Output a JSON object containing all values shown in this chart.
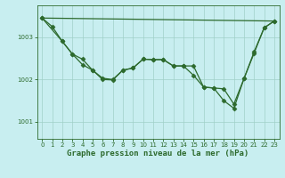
{
  "xlabel": "Graphe pression niveau de la mer (hPa)",
  "background_color": "#c8eef0",
  "grid_color": "#a0d0c8",
  "line_color": "#2d6a2d",
  "xlim": [
    -0.5,
    23.5
  ],
  "ylim": [
    1000.6,
    1003.75
  ],
  "yticks": [
    1001,
    1002,
    1003
  ],
  "xticks": [
    0,
    1,
    2,
    3,
    4,
    5,
    6,
    7,
    8,
    9,
    10,
    11,
    12,
    13,
    14,
    15,
    16,
    17,
    18,
    19,
    20,
    21,
    22,
    23
  ],
  "line1_x": [
    0,
    1,
    2,
    3,
    4,
    5,
    6,
    7,
    8,
    9,
    10,
    11,
    12,
    13,
    14,
    15,
    16,
    17,
    18,
    19,
    20,
    21,
    22,
    23
  ],
  "line1_y": [
    1003.45,
    1003.25,
    1002.9,
    1002.6,
    1002.35,
    1002.22,
    1002.03,
    1002.0,
    1002.22,
    1002.27,
    1002.48,
    1002.47,
    1002.47,
    1002.32,
    1002.32,
    1002.1,
    1001.82,
    1001.8,
    1001.5,
    1001.32,
    1002.02,
    1002.65,
    1003.22,
    1003.38
  ],
  "line2_x": [
    0,
    2,
    3,
    4,
    5,
    6,
    7,
    8,
    9,
    10,
    11,
    12,
    13,
    14,
    15,
    16,
    17,
    18,
    19,
    20,
    21,
    22,
    23
  ],
  "line2_y": [
    1003.45,
    1002.9,
    1002.6,
    1002.48,
    1002.22,
    1002.0,
    1001.99,
    1002.22,
    1002.27,
    1002.48,
    1002.47,
    1002.47,
    1002.32,
    1002.32,
    1002.32,
    1001.82,
    1001.8,
    1001.78,
    1001.42,
    1002.02,
    1002.62,
    1003.22,
    1003.38
  ],
  "line3_x": [
    0,
    23
  ],
  "line3_y": [
    1003.45,
    1003.38
  ],
  "marker": "D",
  "markersize": 2.5,
  "linewidth": 0.9,
  "tick_fontsize": 5.0,
  "label_fontsize": 6.5,
  "fig_width": 3.2,
  "fig_height": 2.0,
  "dpi": 100
}
